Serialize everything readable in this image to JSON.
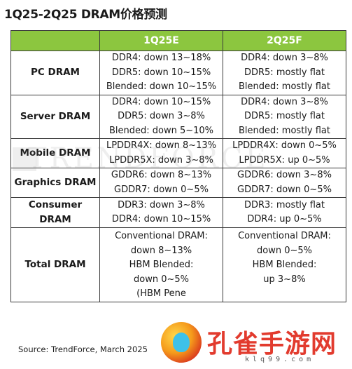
{
  "title": "1Q25-2Q25 DRAM价格预测",
  "columns": [
    "",
    "1Q25E",
    "2Q25F"
  ],
  "rows": [
    {
      "label": [
        "PC DRAM"
      ],
      "q1": [
        "DDR4: down 13~18%",
        "DDR5: down 10~15%",
        "Blended: down 10~15%"
      ],
      "q2": [
        "DDR4: down 3~8%",
        "DDR5: mostly flat",
        "Blended: mostly flat"
      ]
    },
    {
      "label": [
        "Server DRAM"
      ],
      "q1": [
        "DDR4: down 10~15%",
        "DDR5: down 3~8%",
        "Blended: down 5~10%"
      ],
      "q2": [
        "DDR4: down 3~8%",
        "DDR5: mostly flat",
        "Blended: mostly flat"
      ]
    },
    {
      "label": [
        "Mobile DRAM"
      ],
      "q1": [
        "LPDDR4X: down 8~13%",
        "LPDDR5X: down 3~8%"
      ],
      "q2": [
        "LPDDR4X: down 0~5%",
        "LPDDR5X: up 0~5%"
      ]
    },
    {
      "label": [
        "Graphics DRAM"
      ],
      "q1": [
        "GDDR6: down 8~13%",
        "GDDR7: down 0~5%"
      ],
      "q2": [
        "GDDR6: down 3~8%",
        "GDDR7: down 0~5%"
      ]
    },
    {
      "label": [
        "Consumer",
        "DRAM"
      ],
      "q1": [
        "DDR3: down 3~8%",
        "DDR4: down 10~15%"
      ],
      "q2": [
        "DDR3: mostly flat",
        "DDR4: up 0~5%"
      ]
    }
  ],
  "total": {
    "label": "Total DRAM",
    "q1": [
      "Conventional DRAM:",
      "down 8~13%",
      "HBM Blended:",
      "down 0~5%",
      "(HBM Pene"
    ],
    "q2": [
      "Conventional DRAM:",
      "down 0~5%",
      "HBM Blended:",
      "up 3~8%"
    ]
  },
  "watermark": "TRENDFORCE",
  "source": "Source: TrendForce, March 2025",
  "logo": {
    "name": "孔雀手游网",
    "domain": "klq99.com"
  },
  "colors": {
    "header": "#8cc63f",
    "logo_text": "#e23b2e"
  }
}
